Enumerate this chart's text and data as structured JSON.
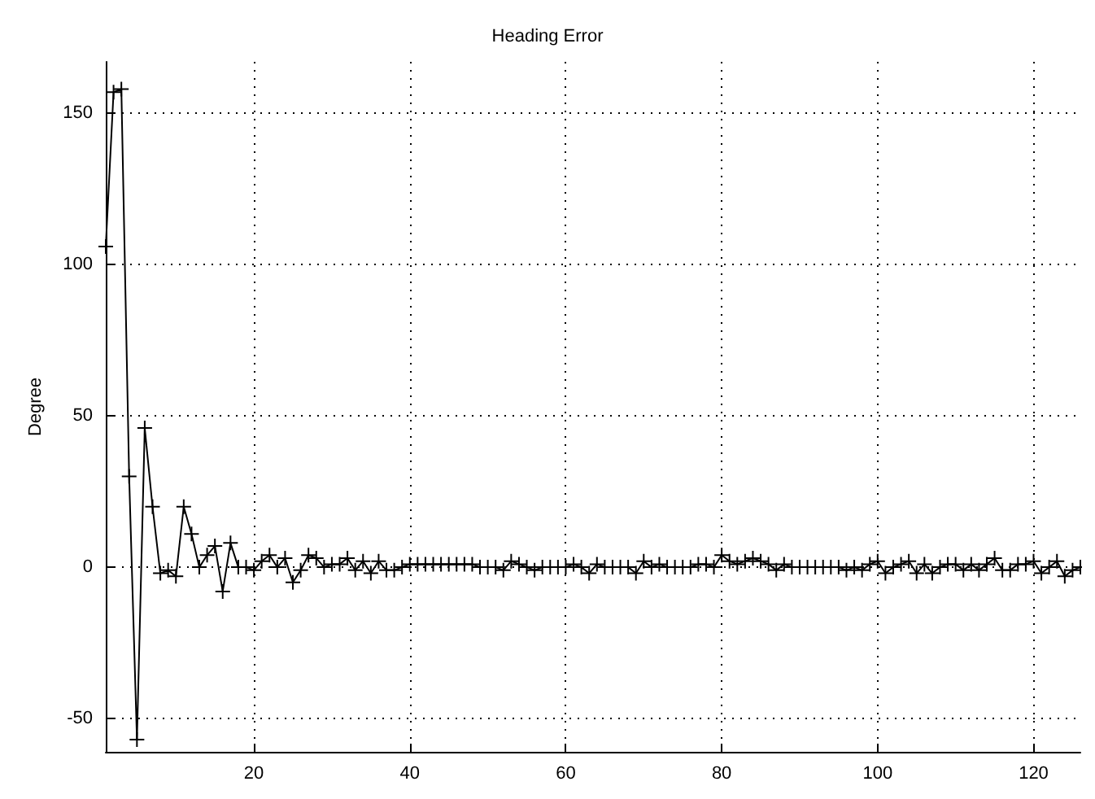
{
  "chart_data": {
    "type": "line",
    "title": "Heading Error",
    "ylabel": "Degree",
    "x": [
      1,
      2,
      3,
      4,
      5,
      6,
      7,
      8,
      9,
      10,
      11,
      12,
      13,
      14,
      15,
      16,
      17,
      18,
      19,
      20,
      21,
      22,
      23,
      24,
      25,
      26,
      27,
      28,
      29,
      30,
      31,
      32,
      33,
      34,
      35,
      36,
      37,
      38,
      39,
      40,
      41,
      42,
      43,
      44,
      45,
      46,
      47,
      48,
      49,
      50,
      51,
      52,
      53,
      54,
      55,
      56,
      57,
      58,
      59,
      60,
      61,
      62,
      63,
      64,
      65,
      66,
      67,
      68,
      69,
      70,
      71,
      72,
      73,
      74,
      75,
      76,
      77,
      78,
      79,
      80,
      81,
      82,
      83,
      84,
      85,
      86,
      87,
      88,
      89,
      90,
      91,
      92,
      93,
      94,
      95,
      96,
      97,
      98,
      99,
      100,
      101,
      102,
      103,
      104,
      105,
      106,
      107,
      108,
      109,
      110,
      111,
      112,
      113,
      114,
      115,
      116,
      117,
      118,
      119,
      120,
      121,
      122,
      123,
      124,
      125,
      126
    ],
    "series": [
      {
        "color": "#000000",
        "values": [
          106,
          157,
          158,
          30,
          -57,
          46,
          20,
          -2,
          -1,
          -3,
          20,
          11,
          0,
          4,
          7,
          -8,
          8,
          0,
          0,
          -1,
          2,
          4,
          0,
          3,
          -5,
          -1,
          4,
          3,
          0,
          1,
          1,
          3,
          -1,
          2,
          -2,
          2,
          -1,
          -1,
          0,
          1,
          1,
          1,
          1,
          1,
          1,
          1,
          1,
          1,
          0,
          0,
          0,
          -1,
          2,
          1,
          0,
          -1,
          0,
          0,
          0,
          0,
          1,
          0,
          -2,
          1,
          0,
          0,
          0,
          0,
          -2,
          2,
          0,
          1,
          0,
          0,
          0,
          0,
          1,
          1,
          0,
          4,
          2,
          1,
          2,
          3,
          2,
          1,
          -1,
          1,
          0,
          0,
          0,
          0,
          0,
          0,
          0,
          -1,
          0,
          -1,
          1,
          2,
          -2,
          0,
          1,
          2,
          -2,
          1,
          -2,
          0,
          1,
          1,
          -1,
          1,
          -1,
          1,
          3,
          -1,
          -1,
          1,
          1,
          2,
          -2,
          0,
          2,
          -3,
          -1,
          0
        ]
      }
    ],
    "xlim": [
      1,
      126
    ],
    "xticks": [
      20,
      40,
      60,
      80,
      100,
      120
    ],
    "ylim": [
      -61,
      167
    ],
    "yticks": [
      -50,
      0,
      50,
      100,
      150
    ],
    "grid": true,
    "marker": "cross",
    "line_style": "solid"
  }
}
